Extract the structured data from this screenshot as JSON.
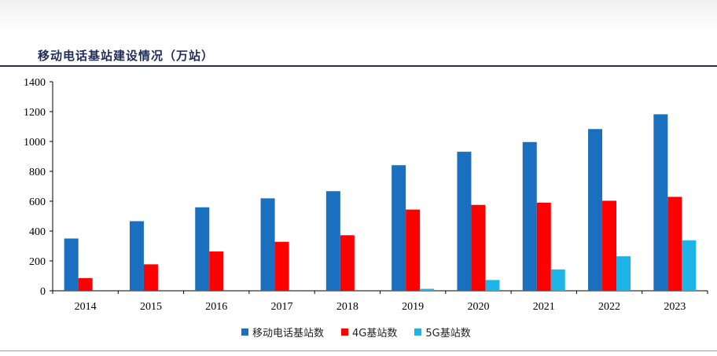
{
  "title": "移动电话基站建设情况（万站）",
  "chart_data": {
    "type": "bar",
    "categories": [
      "2014",
      "2015",
      "2016",
      "2017",
      "2018",
      "2019",
      "2020",
      "2021",
      "2022",
      "2023"
    ],
    "series": [
      {
        "name": "移动电话基站数",
        "color": "#1a6fbf",
        "values": [
          350,
          466,
          559,
          619,
          667,
          841,
          931,
          996,
          1083,
          1182
        ]
      },
      {
        "name": "4G基站数",
        "color": "#ff0000",
        "values": [
          85,
          177,
          263,
          328,
          372,
          544,
          575,
          590,
          603,
          629
        ]
      },
      {
        "name": "5G基站数",
        "color": "#1fb4e8",
        "values": [
          0,
          0,
          0,
          0,
          0,
          13,
          72,
          143,
          231,
          338
        ]
      }
    ],
    "ylim": [
      0,
      1400
    ],
    "yticks": [
      0,
      200,
      400,
      600,
      800,
      1000,
      1200,
      1400
    ],
    "grid": false,
    "legend_position": "bottom-center"
  }
}
